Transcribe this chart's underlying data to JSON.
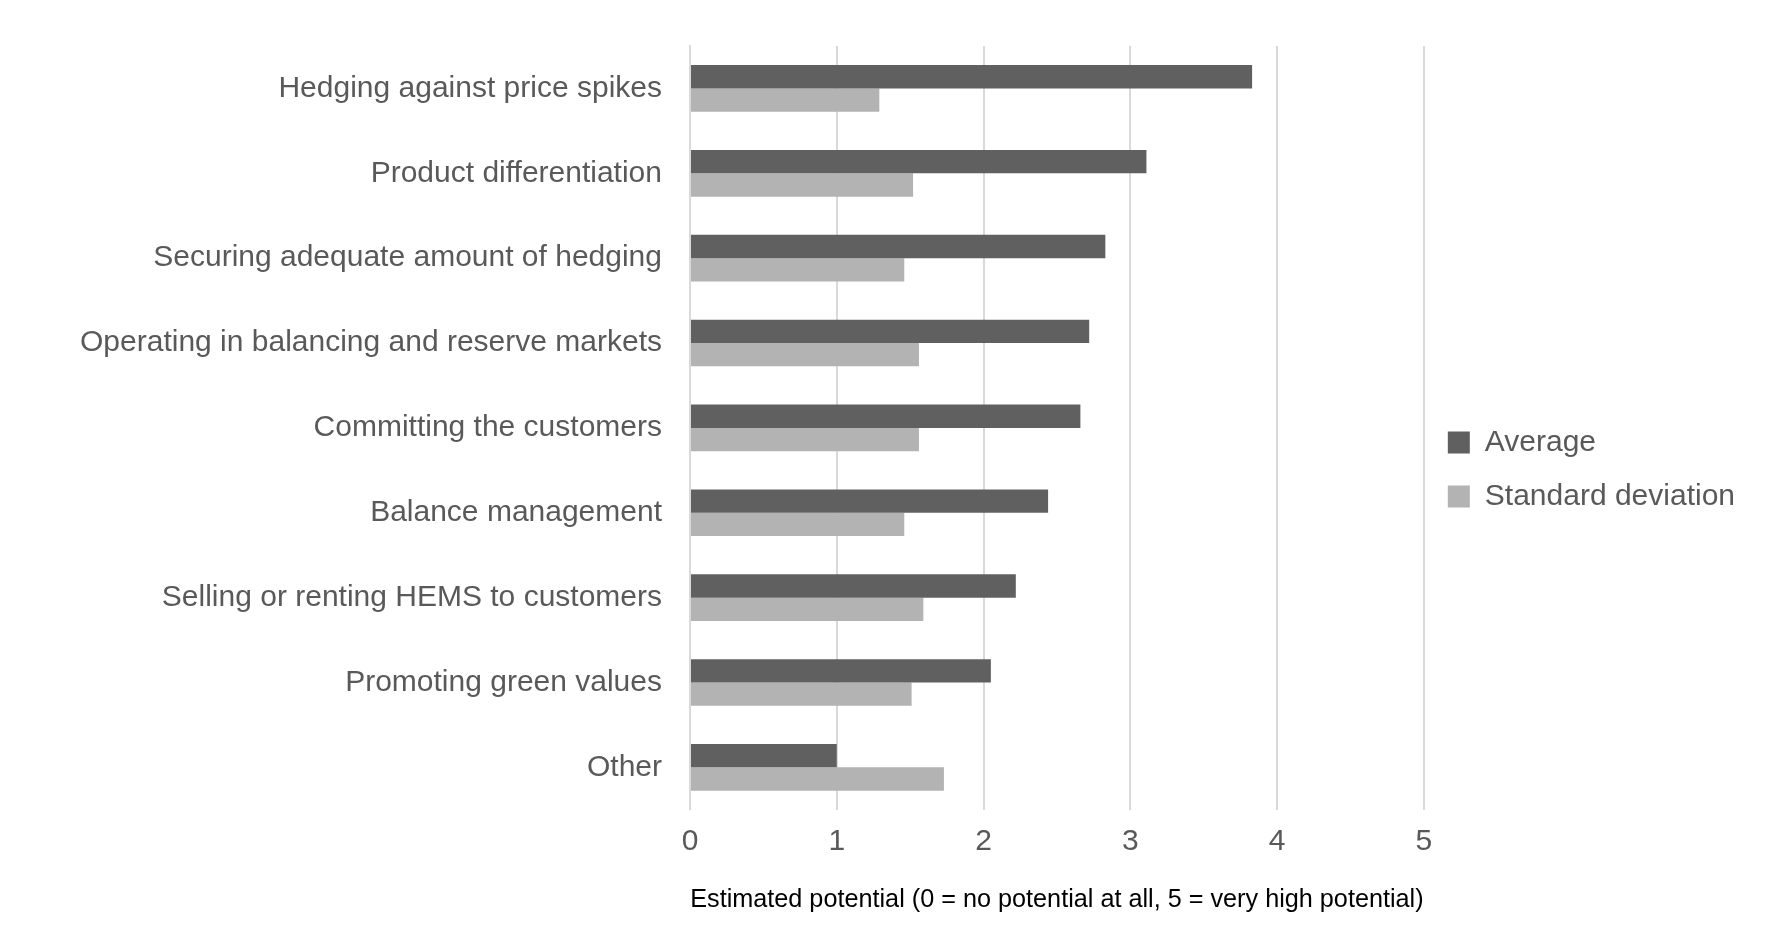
{
  "chart_data": {
    "type": "bar",
    "orientation": "horizontal",
    "categories": [
      "Hedging against price spikes",
      "Product differentiation",
      "Securing adequate amount of hedging",
      "Operating in balancing and reserve markets",
      "Committing the customers",
      "Balance management",
      "Selling or renting HEMS to customers",
      "Promoting green values",
      "Other"
    ],
    "series": [
      {
        "name": "Average",
        "color": "#606060",
        "values": [
          3.83,
          3.11,
          2.83,
          2.72,
          2.66,
          2.44,
          2.22,
          2.05,
          1.0
        ]
      },
      {
        "name": "Standard deviation",
        "color": "#b3b3b3",
        "values": [
          1.29,
          1.52,
          1.46,
          1.56,
          1.56,
          1.46,
          1.59,
          1.51,
          1.73
        ]
      }
    ],
    "xlabel": "Estimated potential (0 = no potential at all, 5 = very high potential)",
    "xlim": [
      0,
      5
    ],
    "xticks": [
      0,
      1,
      2,
      3,
      4,
      5
    ],
    "grid": "x",
    "legend": "right"
  }
}
